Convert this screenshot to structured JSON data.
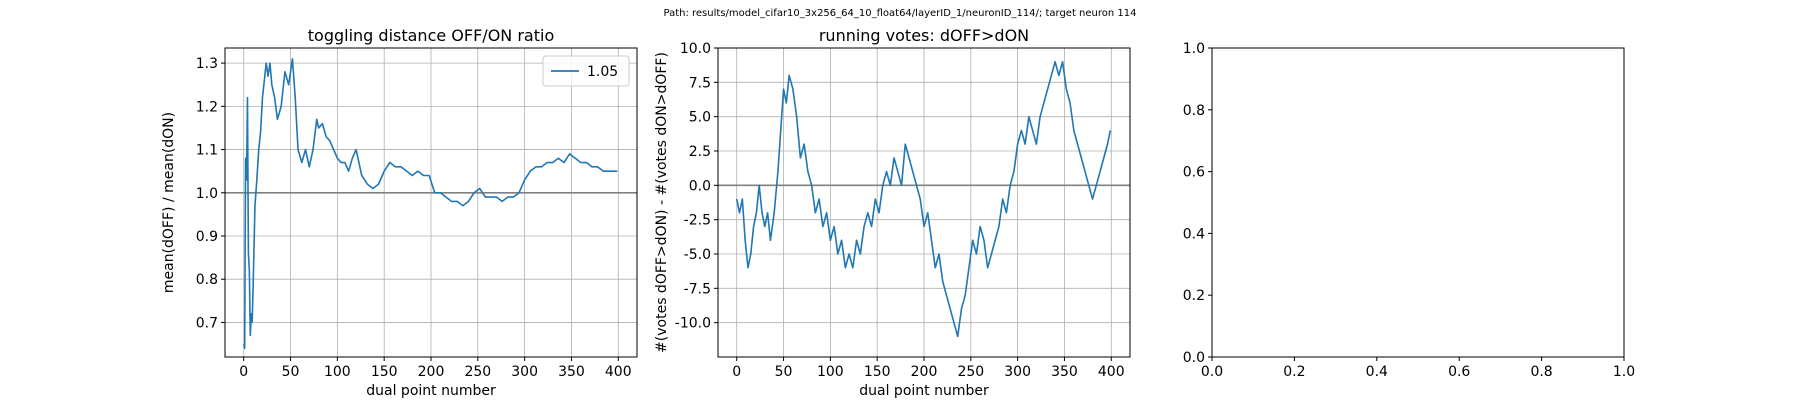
{
  "suptitle": "Path: results/model_cifar10_3x256_64_10_float64/layerID_1/neuronID_114/; target neuron 114",
  "chart_data": [
    {
      "type": "line",
      "title": "toggling distance OFF/ON ratio",
      "xlabel": "dual point number",
      "ylabel": "mean(dOFF) / mean(dON)",
      "xlim": [
        -20,
        420
      ],
      "ylim": [
        0.62,
        1.335
      ],
      "xticks": [
        0,
        50,
        100,
        150,
        200,
        250,
        300,
        350,
        400
      ],
      "yticks": [
        0.7,
        0.8,
        0.9,
        1.0,
        1.1,
        1.2,
        1.3
      ],
      "ytick_format": 1,
      "grid": true,
      "hline": 1.0,
      "legend": {
        "position": "top-right",
        "entries": [
          "1.05"
        ]
      },
      "series": [
        {
          "name": "1.05",
          "color": "#1f77b4",
          "x": [
            0,
            1,
            2,
            3,
            4,
            5,
            6,
            7,
            8,
            9,
            10,
            12,
            14,
            16,
            18,
            20,
            22,
            24,
            26,
            28,
            30,
            33,
            36,
            40,
            44,
            48,
            52,
            55,
            58,
            62,
            66,
            70,
            74,
            78,
            80,
            84,
            88,
            92,
            96,
            100,
            104,
            108,
            112,
            116,
            120,
            126,
            132,
            138,
            144,
            150,
            156,
            162,
            168,
            174,
            180,
            186,
            192,
            198,
            204,
            210,
            216,
            222,
            228,
            234,
            240,
            246,
            252,
            258,
            264,
            270,
            276,
            282,
            288,
            294,
            300,
            306,
            312,
            318,
            324,
            330,
            336,
            342,
            348,
            354,
            360,
            366,
            372,
            378,
            384,
            390,
            396,
            399
          ],
          "values": [
            0.65,
            0.64,
            1.08,
            1.03,
            1.22,
            0.86,
            0.82,
            0.67,
            0.72,
            0.7,
            0.78,
            0.97,
            1.03,
            1.1,
            1.14,
            1.22,
            1.26,
            1.3,
            1.27,
            1.3,
            1.25,
            1.22,
            1.17,
            1.2,
            1.28,
            1.25,
            1.31,
            1.22,
            1.1,
            1.07,
            1.1,
            1.06,
            1.1,
            1.17,
            1.15,
            1.16,
            1.13,
            1.12,
            1.1,
            1.08,
            1.07,
            1.07,
            1.05,
            1.08,
            1.1,
            1.04,
            1.02,
            1.01,
            1.02,
            1.05,
            1.07,
            1.06,
            1.06,
            1.05,
            1.04,
            1.05,
            1.04,
            1.04,
            1.0,
            1.0,
            0.99,
            0.98,
            0.98,
            0.97,
            0.98,
            1.0,
            1.01,
            0.99,
            0.99,
            0.99,
            0.98,
            0.99,
            0.99,
            1.0,
            1.03,
            1.05,
            1.06,
            1.06,
            1.07,
            1.07,
            1.08,
            1.07,
            1.09,
            1.08,
            1.07,
            1.07,
            1.06,
            1.06,
            1.05,
            1.05,
            1.05,
            1.05
          ]
        }
      ]
    },
    {
      "type": "line",
      "title": "running votes: dOFF>dON",
      "xlabel": "dual point number",
      "ylabel": "#(votes dOFF>dON) - #(votes dON>dOFF)",
      "xlim": [
        -20,
        420
      ],
      "ylim": [
        -12.5,
        10
      ],
      "xticks": [
        0,
        50,
        100,
        150,
        200,
        250,
        300,
        350,
        400
      ],
      "yticks": [
        -10.0,
        -7.5,
        -5.0,
        -2.5,
        0.0,
        2.5,
        5.0,
        7.5,
        10.0
      ],
      "ytick_format": 1,
      "grid": true,
      "hline": 0,
      "series": [
        {
          "name": "",
          "color": "#1f77b4",
          "x": [
            0,
            3,
            6,
            9,
            12,
            15,
            18,
            21,
            24,
            27,
            30,
            33,
            36,
            40,
            44,
            48,
            50,
            53,
            56,
            60,
            64,
            68,
            72,
            76,
            80,
            84,
            88,
            92,
            96,
            100,
            104,
            108,
            112,
            116,
            120,
            124,
            128,
            132,
            136,
            140,
            144,
            148,
            152,
            156,
            160,
            164,
            168,
            172,
            176,
            180,
            184,
            188,
            192,
            196,
            200,
            204,
            208,
            212,
            216,
            220,
            224,
            228,
            232,
            236,
            240,
            244,
            248,
            252,
            256,
            260,
            264,
            268,
            272,
            276,
            280,
            284,
            288,
            292,
            296,
            300,
            304,
            308,
            312,
            316,
            320,
            324,
            328,
            332,
            336,
            340,
            344,
            348,
            352,
            356,
            360,
            364,
            368,
            372,
            376,
            380,
            384,
            388,
            392,
            396,
            399
          ],
          "values": [
            -1,
            -2,
            -1,
            -4,
            -6,
            -5,
            -3,
            -2,
            0,
            -2,
            -3,
            -2,
            -4,
            -2,
            1,
            5,
            7,
            6,
            8,
            7,
            5,
            2,
            3,
            1,
            0,
            -2,
            -1,
            -3,
            -2,
            -4,
            -3,
            -5,
            -4,
            -6,
            -5,
            -6,
            -4,
            -5,
            -3,
            -2,
            -3,
            -1,
            -2,
            0,
            1,
            0,
            2,
            1,
            0,
            3,
            2,
            1,
            0,
            -1,
            -3,
            -2,
            -4,
            -6,
            -5,
            -7,
            -8,
            -9,
            -10,
            -11,
            -9,
            -8,
            -6,
            -4,
            -5,
            -3,
            -4,
            -6,
            -5,
            -4,
            -3,
            -1,
            -2,
            0,
            1,
            3,
            4,
            3,
            5,
            4,
            3,
            5,
            6,
            7,
            8,
            9,
            8,
            9,
            7,
            6,
            4,
            3,
            2,
            1,
            0,
            -1,
            0,
            1,
            2,
            3,
            4
          ]
        }
      ]
    },
    {
      "type": "line",
      "title": "",
      "xlabel": "",
      "ylabel": "",
      "xlim": [
        0,
        1
      ],
      "ylim": [
        0,
        1
      ],
      "xticks": [
        0,
        0.2,
        0.4,
        0.6,
        0.8,
        1.0
      ],
      "yticks": [
        0,
        0.2,
        0.4,
        0.6,
        0.8,
        1.0
      ],
      "ytick_format": 1,
      "grid": false,
      "series": []
    }
  ]
}
